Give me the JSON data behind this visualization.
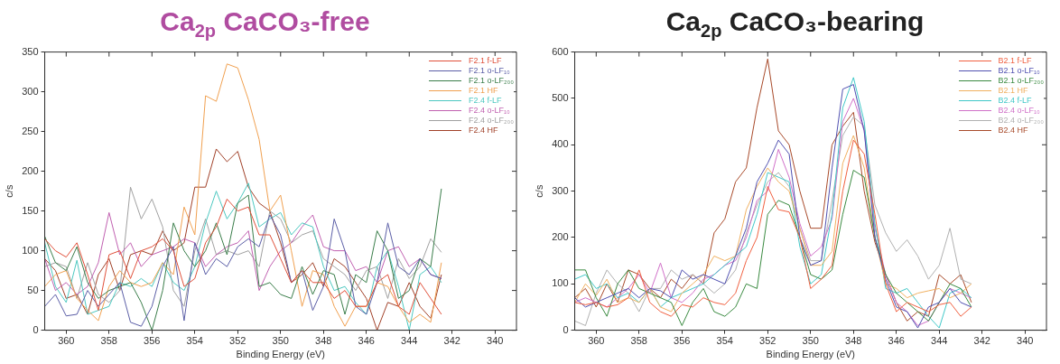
{
  "chart_data": [
    {
      "type": "line",
      "title": "Ca$_{2p}$ CaCO₃-free",
      "xlabel": "Binding Energy (eV)",
      "ylabel": "c/s",
      "xlim": [
        361,
        339
      ],
      "xticks": [
        360,
        358,
        356,
        354,
        352,
        350,
        348,
        346,
        344,
        342,
        340
      ],
      "ylim": [
        0,
        350
      ],
      "yticks": [
        0,
        50,
        100,
        150,
        200,
        250,
        300,
        350
      ],
      "grid": false,
      "legend": "top right",
      "marker": "none",
      "line_style": "solid",
      "x": [
        361,
        360.5,
        360,
        359.5,
        359,
        358.5,
        358,
        357.5,
        357,
        356.5,
        356,
        355.5,
        355,
        354.5,
        354,
        353.5,
        353,
        352.5,
        352,
        351.5,
        351,
        350.5,
        350,
        349.5,
        349,
        348.5,
        348,
        347.5,
        347,
        346.5,
        346,
        345.5,
        345,
        344.5,
        344,
        343.5,
        343,
        342.5
      ],
      "series": [
        {
          "name": "F2.1 f-LF",
          "color": "#e0503a",
          "values": [
            115,
            100,
            92,
            110,
            70,
            25,
            95,
            100,
            65,
            100,
            105,
            115,
            100,
            55,
            65,
            110,
            130,
            165,
            150,
            155,
            120,
            120,
            90,
            60,
            75,
            60,
            60,
            40,
            50,
            30,
            30,
            60,
            70,
            30,
            20,
            60,
            40,
            20
          ]
        },
        {
          "name": "F2.1 o-LF₁₀",
          "color": "#5b5ea6",
          "values": [
            30,
            45,
            18,
            20,
            50,
            30,
            45,
            60,
            10,
            5,
            30,
            80,
            105,
            12,
            110,
            70,
            90,
            80,
            105,
            115,
            105,
            145,
            120,
            60,
            75,
            25,
            55,
            140,
            100,
            30,
            20,
            60,
            135,
            80,
            70,
            90,
            70,
            65
          ]
        },
        {
          "name": "F2.1 o-LF₂₀₀",
          "color": "#3a7d4a",
          "values": [
            118,
            85,
            75,
            105,
            60,
            40,
            50,
            55,
            60,
            35,
            0,
            50,
            135,
            100,
            80,
            100,
            135,
            95,
            160,
            170,
            55,
            60,
            45,
            40,
            80,
            45,
            75,
            70,
            20,
            70,
            60,
            125,
            100,
            40,
            50,
            90,
            80,
            178
          ]
        },
        {
          "name": "F2.1 HF",
          "color": "#f0a050",
          "values": [
            55,
            70,
            75,
            40,
            25,
            12,
            55,
            75,
            60,
            55,
            60,
            85,
            70,
            155,
            120,
            295,
            288,
            335,
            330,
            290,
            240,
            150,
            170,
            100,
            30,
            75,
            70,
            30,
            5,
            30,
            30,
            60,
            55,
            30,
            10,
            20,
            10,
            85
          ]
        },
        {
          "name": "F2.4 f-LF",
          "color": "#4cc8c0",
          "values": [
            110,
            55,
            35,
            88,
            20,
            25,
            30,
            60,
            55,
            65,
            55,
            85,
            60,
            50,
            80,
            135,
            175,
            140,
            160,
            185,
            130,
            140,
            148,
            120,
            135,
            130,
            80,
            50,
            55,
            35,
            20,
            80,
            100,
            55,
            0,
            70,
            80,
            60
          ]
        },
        {
          "name": "F2.4 o-LF₁₀",
          "color": "#c060b0",
          "values": [
            90,
            50,
            60,
            45,
            55,
            85,
            148,
            95,
            110,
            80,
            95,
            100,
            105,
            115,
            110,
            80,
            95,
            105,
            110,
            125,
            50,
            80,
            100,
            110,
            130,
            145,
            105,
            100,
            100,
            75,
            80,
            60,
            100,
            105,
            80,
            90,
            70,
            65
          ]
        },
        {
          "name": "F2.4 o-LF₂₀₀",
          "color": "#a0a0a0",
          "values": [
            80,
            85,
            80,
            40,
            85,
            45,
            35,
            50,
            180,
            140,
            165,
            130,
            50,
            30,
            100,
            140,
            95,
            100,
            95,
            100,
            80,
            150,
            140,
            110,
            120,
            125,
            90,
            80,
            70,
            50,
            75,
            80,
            40,
            90,
            65,
            80,
            115,
            98
          ]
        },
        {
          "name": "F2.4 HF",
          "color": "#a04028",
          "values": [
            90,
            75,
            40,
            45,
            20,
            70,
            90,
            50,
            95,
            100,
            95,
            125,
            100,
            110,
            180,
            180,
            228,
            212,
            225,
            180,
            160,
            150,
            110,
            60,
            70,
            85,
            55,
            90,
            80,
            60,
            40,
            0,
            35,
            30,
            60,
            30,
            15,
            70
          ]
        }
      ]
    },
    {
      "type": "line",
      "title": "Ca$_{2p}$ CaCO₃-bearing",
      "xlabel": "Binding Energy (eV)",
      "ylabel": "c/s",
      "xlim": [
        361,
        339
      ],
      "xticks": [
        360,
        358,
        356,
        354,
        352,
        350,
        348,
        346,
        344,
        342,
        340
      ],
      "ylim": [
        0,
        600
      ],
      "yticks": [
        0,
        100,
        200,
        300,
        400,
        500,
        600
      ],
      "grid": false,
      "legend": "top right",
      "marker": "none",
      "line_style": "solid",
      "x": [
        361,
        360.5,
        360,
        359.5,
        359,
        358.5,
        358,
        357.5,
        357,
        356.5,
        356,
        355.5,
        355,
        354.5,
        354,
        353.5,
        353,
        352.5,
        352,
        351.5,
        351,
        350.5,
        350,
        349.5,
        349,
        348.5,
        348,
        347.5,
        347,
        346.5,
        346,
        345.5,
        345,
        344.5,
        344,
        343.5,
        343,
        342.5
      ],
      "series": [
        {
          "name": "B2.1 f-LF",
          "color": "#f06040",
          "values": [
            60,
            55,
            60,
            50,
            55,
            70,
            130,
            60,
            40,
            30,
            55,
            50,
            70,
            60,
            55,
            80,
            150,
            200,
            310,
            260,
            255,
            200,
            90,
            110,
            140,
            300,
            410,
            380,
            250,
            100,
            40,
            60,
            50,
            40,
            55,
            60,
            30,
            50
          ]
        },
        {
          "name": "B2.1 o-LF₁₀",
          "color": "#5050b0",
          "values": [
            70,
            50,
            60,
            70,
            80,
            90,
            70,
            90,
            85,
            70,
            130,
            110,
            120,
            110,
            100,
            160,
            220,
            320,
            360,
            410,
            380,
            200,
            140,
            150,
            350,
            520,
            530,
            430,
            200,
            110,
            50,
            40,
            5,
            50,
            60,
            90,
            60,
            50
          ]
        },
        {
          "name": "B2.1 o-LF₂₀₀",
          "color": "#3a8a40",
          "values": [
            130,
            130,
            70,
            30,
            100,
            130,
            90,
            80,
            70,
            60,
            10,
            60,
            90,
            40,
            30,
            50,
            100,
            90,
            250,
            280,
            270,
            200,
            120,
            110,
            130,
            250,
            345,
            330,
            200,
            120,
            80,
            60,
            40,
            20,
            60,
            100,
            90,
            50
          ]
        },
        {
          "name": "B2.1 HF",
          "color": "#f0b060",
          "values": [
            60,
            100,
            75,
            110,
            60,
            70,
            60,
            90,
            50,
            40,
            80,
            100,
            120,
            160,
            150,
            160,
            260,
            310,
            350,
            320,
            300,
            220,
            140,
            140,
            170,
            360,
            420,
            350,
            200,
            100,
            90,
            70,
            80,
            85,
            90,
            70,
            80,
            100
          ]
        },
        {
          "name": "B2.4 f-LF",
          "color": "#40c8c8",
          "values": [
            110,
            120,
            90,
            100,
            70,
            80,
            60,
            90,
            50,
            70,
            80,
            90,
            100,
            120,
            140,
            160,
            180,
            250,
            340,
            330,
            320,
            180,
            100,
            120,
            250,
            480,
            545,
            450,
            230,
            90,
            80,
            90,
            60,
            30,
            5,
            80,
            90,
            70
          ]
        },
        {
          "name": "B2.4 o-LF₁₀",
          "color": "#d070c8",
          "values": [
            60,
            70,
            60,
            50,
            70,
            90,
            120,
            80,
            145,
            70,
            60,
            80,
            110,
            120,
            140,
            150,
            200,
            280,
            300,
            390,
            330,
            230,
            160,
            180,
            240,
            450,
            500,
            430,
            220,
            120,
            60,
            40,
            10,
            20,
            60,
            90,
            80,
            70
          ]
        },
        {
          "name": "B2.4 o-LF₂₀₀",
          "color": "#b0b0b0",
          "values": [
            20,
            10,
            80,
            130,
            100,
            80,
            40,
            90,
            90,
            130,
            110,
            120,
            100,
            80,
            100,
            130,
            210,
            270,
            320,
            340,
            310,
            220,
            150,
            150,
            280,
            420,
            460,
            440,
            270,
            210,
            170,
            195,
            160,
            110,
            140,
            220,
            110,
            100
          ]
        },
        {
          "name": "B2.4 HF",
          "color": "#a84a2a",
          "values": [
            70,
            90,
            50,
            100,
            60,
            130,
            120,
            90,
            70,
            110,
            90,
            120,
            100,
            210,
            240,
            320,
            350,
            480,
            585,
            430,
            400,
            300,
            220,
            220,
            400,
            440,
            470,
            300,
            190,
            120,
            60,
            20,
            40,
            30,
            120,
            100,
            120,
            60
          ]
        }
      ]
    }
  ]
}
